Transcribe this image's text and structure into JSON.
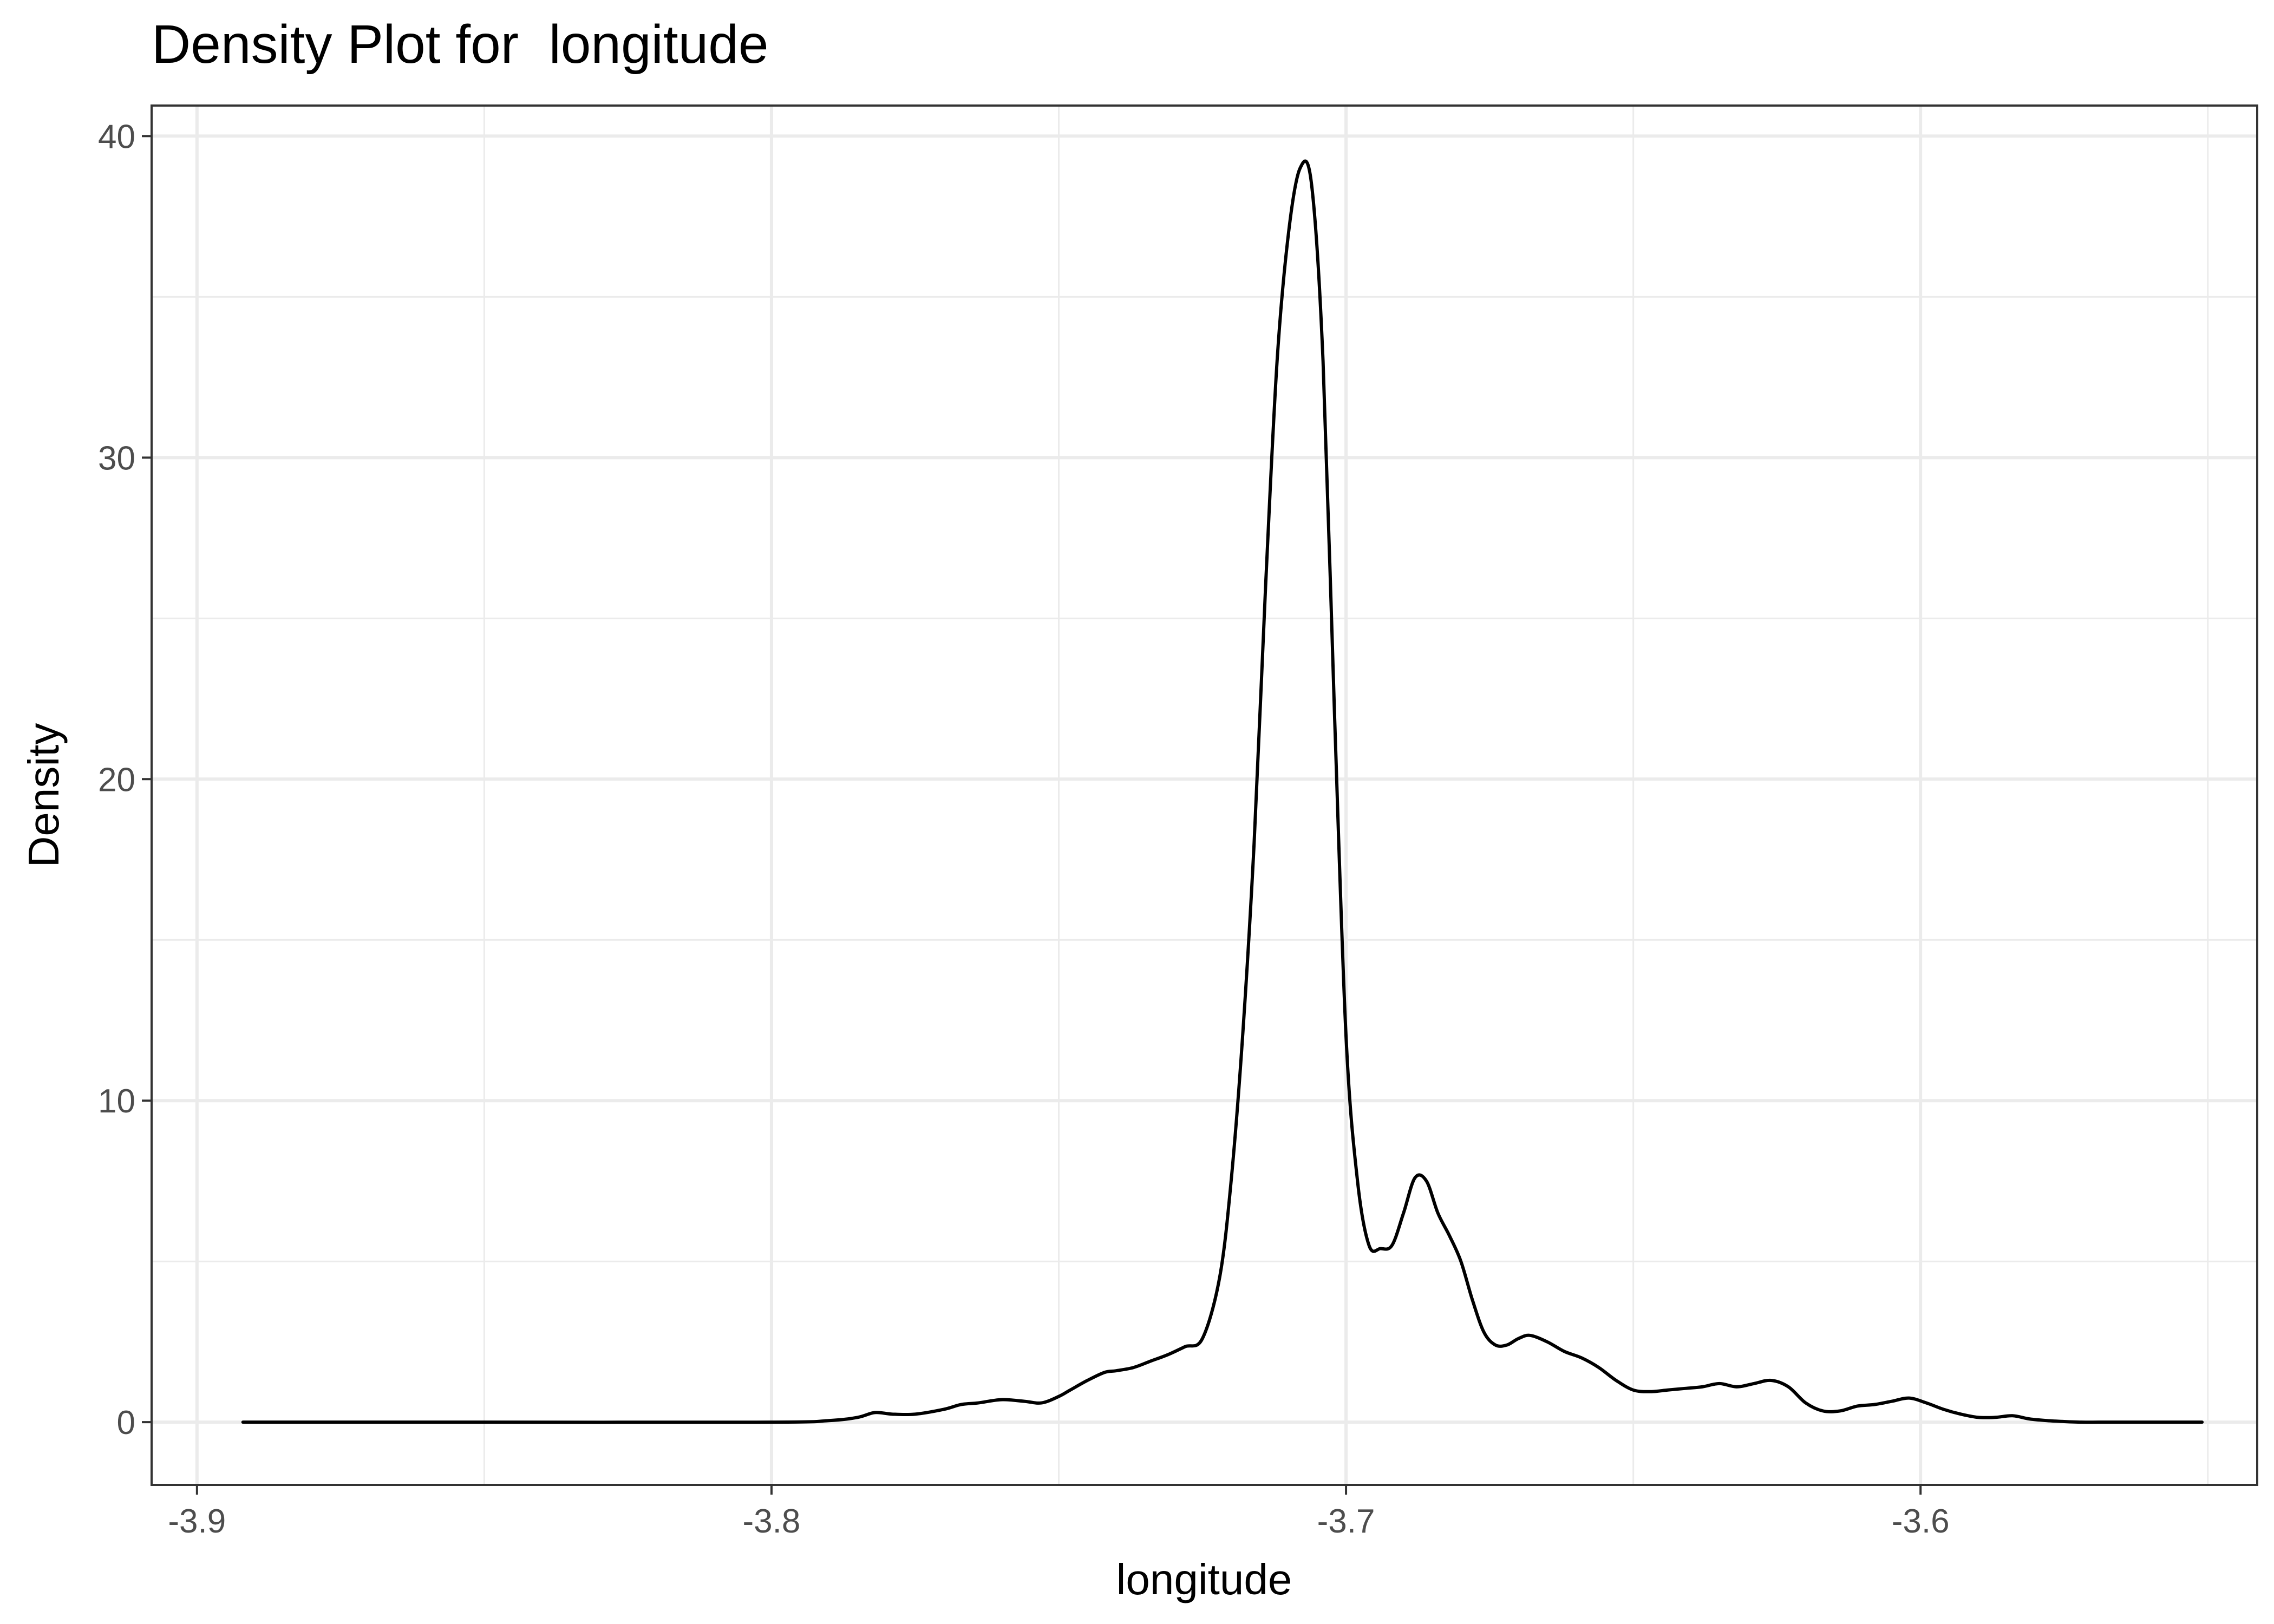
{
  "chart_data": {
    "type": "line",
    "title": "Density Plot for  longitude",
    "xlabel": "longitude",
    "ylabel": "Density",
    "xlim": [
      -3.9079,
      -3.5414
    ],
    "ylim": [
      -1.95,
      40.95
    ],
    "x_ticks": [
      -3.9,
      -3.8,
      -3.7,
      -3.6
    ],
    "x_tick_labels": [
      "-3.9",
      "-3.8",
      "-3.7",
      "-3.6"
    ],
    "y_ticks": [
      0,
      10,
      20,
      30,
      40
    ],
    "y_tick_labels": [
      "0",
      "10",
      "20",
      "30",
      "40"
    ],
    "grid": true,
    "series": [
      {
        "color": "#000000",
        "x": [
          -3.892,
          -3.85,
          -3.8,
          -3.79,
          -3.785,
          -3.782,
          -3.779,
          -3.775,
          -3.77,
          -3.767,
          -3.764,
          -3.76,
          -3.756,
          -3.753,
          -3.75,
          -3.748,
          -3.745,
          -3.742,
          -3.74,
          -3.737,
          -3.734,
          -3.731,
          -3.728,
          -3.725,
          -3.722,
          -3.72,
          -3.718,
          -3.716,
          -3.714,
          -3.712,
          -3.71,
          -3.708,
          -3.706,
          -3.704,
          -3.702,
          -3.7,
          -3.698,
          -3.696,
          -3.694,
          -3.692,
          -3.69,
          -3.688,
          -3.686,
          -3.684,
          -3.682,
          -3.68,
          -3.678,
          -3.676,
          -3.674,
          -3.672,
          -3.67,
          -3.668,
          -3.665,
          -3.662,
          -3.659,
          -3.656,
          -3.653,
          -3.65,
          -3.647,
          -3.644,
          -3.641,
          -3.638,
          -3.635,
          -3.632,
          -3.629,
          -3.626,
          -3.623,
          -3.62,
          -3.617,
          -3.614,
          -3.611,
          -3.608,
          -3.605,
          -3.602,
          -3.599,
          -3.596,
          -3.593,
          -3.59,
          -3.587,
          -3.584,
          -3.581,
          -3.578,
          -3.575,
          -3.572,
          -3.569,
          -3.566,
          -3.563,
          -3.56,
          -3.557,
          -3.554,
          -3.551
        ],
        "y": [
          0.0,
          0.0,
          0.0,
          0.05,
          0.15,
          0.3,
          0.25,
          0.25,
          0.4,
          0.55,
          0.6,
          0.7,
          0.65,
          0.6,
          0.8,
          1.0,
          1.3,
          1.55,
          1.6,
          1.7,
          1.9,
          2.1,
          2.35,
          2.6,
          4.5,
          7.5,
          12.0,
          18.0,
          26.0,
          33.0,
          37.0,
          39.0,
          38.5,
          33.0,
          22.0,
          12.0,
          7.5,
          5.5,
          5.4,
          5.5,
          6.5,
          7.6,
          7.5,
          6.5,
          5.8,
          5.0,
          3.8,
          2.8,
          2.4,
          2.4,
          2.6,
          2.7,
          2.5,
          2.2,
          2.0,
          1.7,
          1.3,
          1.0,
          0.95,
          1.0,
          1.05,
          1.1,
          1.2,
          1.1,
          1.2,
          1.3,
          1.1,
          0.6,
          0.35,
          0.35,
          0.5,
          0.55,
          0.65,
          0.75,
          0.6,
          0.4,
          0.25,
          0.15,
          0.15,
          0.2,
          0.1,
          0.05,
          0.02,
          0.0,
          0.0,
          0.0,
          0.0,
          0.0,
          0.0,
          0.0,
          0.0
        ]
      }
    ]
  }
}
